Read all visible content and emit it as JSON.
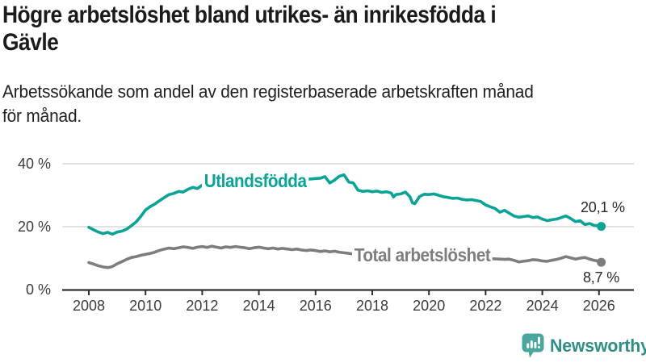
{
  "header": {
    "title": "Högre arbetslöshet bland utrikes- än inrikesfödda i\nGävle",
    "subtitle": "Arbetssökande som andel av den registerbaserade arbetskraften månad\nför månad."
  },
  "chart_data": {
    "type": "line",
    "unit": "%",
    "title": "Högre arbetslöshet bland utrikes- än inrikesfödda i Gävle",
    "subtitle": "Arbetssökande som andel av den registerbaserade arbetskraften månad för månad.",
    "xlabel": "",
    "ylabel": "",
    "ylim": [
      0,
      40
    ],
    "xlim": [
      2008,
      2026.3
    ],
    "grid": "horizontal",
    "grid_color": "#d9d9d9",
    "axis_color": "#2e2e2e",
    "tick_label_color": "#3c3c3c",
    "yticks": [
      {
        "value": 0,
        "label": "0 %"
      },
      {
        "value": 20,
        "label": "20 %"
      },
      {
        "value": 40,
        "label": "40 %"
      }
    ],
    "xticks": [
      {
        "value": 2008,
        "label": "2008"
      },
      {
        "value": 2010,
        "label": "2010"
      },
      {
        "value": 2012,
        "label": "2012"
      },
      {
        "value": 2014,
        "label": "2014"
      },
      {
        "value": 2016,
        "label": "2016"
      },
      {
        "value": 2018,
        "label": "2018"
      },
      {
        "value": 2020,
        "label": "2020"
      },
      {
        "value": 2022,
        "label": "2022"
      },
      {
        "value": 2024,
        "label": "2024"
      },
      {
        "value": 2026,
        "label": "2026"
      }
    ],
    "series": [
      {
        "name": "Utlandsfödda",
        "color": "#0aa396",
        "end_value": 20.1,
        "end_label": "20,1 %",
        "points": [
          [
            2008.0,
            19.8
          ],
          [
            2008.17,
            19.0
          ],
          [
            2008.33,
            18.3
          ],
          [
            2008.5,
            17.8
          ],
          [
            2008.67,
            18.2
          ],
          [
            2008.83,
            17.6
          ],
          [
            2009.0,
            18.3
          ],
          [
            2009.17,
            18.6
          ],
          [
            2009.33,
            19.2
          ],
          [
            2009.5,
            20.3
          ],
          [
            2009.67,
            21.5
          ],
          [
            2009.83,
            23.2
          ],
          [
            2010.0,
            25.3
          ],
          [
            2010.17,
            26.4
          ],
          [
            2010.33,
            27.2
          ],
          [
            2010.5,
            28.3
          ],
          [
            2010.67,
            29.3
          ],
          [
            2010.83,
            30.2
          ],
          [
            2011.0,
            30.6
          ],
          [
            2011.17,
            31.2
          ],
          [
            2011.33,
            31.0
          ],
          [
            2011.5,
            31.9
          ],
          [
            2011.67,
            32.5
          ],
          [
            2011.83,
            32.1
          ],
          [
            2012.0,
            33.2
          ],
          [
            2012.17,
            32.7
          ],
          [
            2012.33,
            33.1
          ],
          [
            2012.5,
            33.4
          ],
          [
            2012.67,
            33.0
          ],
          [
            2012.83,
            33.5
          ],
          [
            2013.0,
            33.3
          ],
          [
            2013.25,
            33.8
          ],
          [
            2013.5,
            34.1
          ],
          [
            2013.75,
            33.8
          ],
          [
            2014.0,
            34.3
          ],
          [
            2014.25,
            34.1
          ],
          [
            2014.5,
            34.6
          ],
          [
            2014.75,
            34.4
          ],
          [
            2015.0,
            34.7
          ],
          [
            2015.25,
            34.5
          ],
          [
            2015.5,
            34.9
          ],
          [
            2015.75,
            35.1
          ],
          [
            2016.0,
            35.3
          ],
          [
            2016.17,
            35.4
          ],
          [
            2016.33,
            35.9
          ],
          [
            2016.5,
            33.9
          ],
          [
            2016.67,
            34.8
          ],
          [
            2016.83,
            36.0
          ],
          [
            2017.0,
            36.5
          ],
          [
            2017.08,
            35.5
          ],
          [
            2017.17,
            34.2
          ],
          [
            2017.33,
            33.9
          ],
          [
            2017.5,
            31.6
          ],
          [
            2017.67,
            31.2
          ],
          [
            2017.83,
            31.4
          ],
          [
            2018.0,
            31.1
          ],
          [
            2018.17,
            31.3
          ],
          [
            2018.33,
            30.9
          ],
          [
            2018.5,
            31.1
          ],
          [
            2018.67,
            30.7
          ],
          [
            2018.75,
            29.4
          ],
          [
            2018.83,
            30.2
          ],
          [
            2019.0,
            30.4
          ],
          [
            2019.17,
            31.0
          ],
          [
            2019.33,
            29.5
          ],
          [
            2019.42,
            27.6
          ],
          [
            2019.5,
            27.3
          ],
          [
            2019.67,
            29.6
          ],
          [
            2019.83,
            30.3
          ],
          [
            2020.0,
            30.2
          ],
          [
            2020.17,
            30.4
          ],
          [
            2020.33,
            30.0
          ],
          [
            2020.5,
            29.5
          ],
          [
            2020.67,
            29.3
          ],
          [
            2020.83,
            29.0
          ],
          [
            2021.0,
            29.1
          ],
          [
            2021.17,
            28.7
          ],
          [
            2021.33,
            28.5
          ],
          [
            2021.5,
            28.6
          ],
          [
            2021.67,
            28.3
          ],
          [
            2021.83,
            28.0
          ],
          [
            2022.0,
            26.9
          ],
          [
            2022.17,
            26.3
          ],
          [
            2022.33,
            25.8
          ],
          [
            2022.5,
            24.6
          ],
          [
            2022.67,
            25.2
          ],
          [
            2022.83,
            24.3
          ],
          [
            2023.0,
            23.4
          ],
          [
            2023.17,
            23.0
          ],
          [
            2023.33,
            23.2
          ],
          [
            2023.5,
            23.4
          ],
          [
            2023.67,
            22.9
          ],
          [
            2023.83,
            23.1
          ],
          [
            2024.0,
            22.4
          ],
          [
            2024.17,
            21.9
          ],
          [
            2024.33,
            22.2
          ],
          [
            2024.5,
            22.4
          ],
          [
            2024.67,
            22.9
          ],
          [
            2024.83,
            23.4
          ],
          [
            2025.0,
            22.6
          ],
          [
            2025.17,
            21.6
          ],
          [
            2025.33,
            21.9
          ],
          [
            2025.5,
            20.7
          ],
          [
            2025.67,
            21.0
          ],
          [
            2025.83,
            20.4
          ],
          [
            2026.0,
            20.3
          ],
          [
            2026.08,
            20.1
          ]
        ]
      },
      {
        "name": "Total arbetslöshet",
        "color": "#7d7d7d",
        "end_value": 8.7,
        "end_label": "8,7 %",
        "points": [
          [
            2008.0,
            8.6
          ],
          [
            2008.17,
            8.1
          ],
          [
            2008.33,
            7.6
          ],
          [
            2008.5,
            7.2
          ],
          [
            2008.67,
            7.0
          ],
          [
            2008.83,
            7.3
          ],
          [
            2009.0,
            8.2
          ],
          [
            2009.17,
            8.9
          ],
          [
            2009.33,
            9.6
          ],
          [
            2009.5,
            10.2
          ],
          [
            2009.67,
            10.5
          ],
          [
            2009.83,
            10.9
          ],
          [
            2010.0,
            11.2
          ],
          [
            2010.17,
            11.5
          ],
          [
            2010.33,
            11.9
          ],
          [
            2010.5,
            12.5
          ],
          [
            2010.67,
            12.9
          ],
          [
            2010.83,
            13.2
          ],
          [
            2011.0,
            13.0
          ],
          [
            2011.17,
            13.3
          ],
          [
            2011.33,
            13.6
          ],
          [
            2011.5,
            13.4
          ],
          [
            2011.67,
            13.1
          ],
          [
            2011.83,
            13.5
          ],
          [
            2012.0,
            13.7
          ],
          [
            2012.17,
            13.4
          ],
          [
            2012.33,
            13.8
          ],
          [
            2012.5,
            13.5
          ],
          [
            2012.67,
            13.2
          ],
          [
            2012.83,
            13.6
          ],
          [
            2013.0,
            13.4
          ],
          [
            2013.17,
            13.7
          ],
          [
            2013.33,
            13.5
          ],
          [
            2013.5,
            13.3
          ],
          [
            2013.67,
            13.0
          ],
          [
            2013.83,
            13.3
          ],
          [
            2014.0,
            13.5
          ],
          [
            2014.17,
            13.2
          ],
          [
            2014.33,
            13.0
          ],
          [
            2014.5,
            13.2
          ],
          [
            2014.67,
            12.9
          ],
          [
            2014.83,
            13.1
          ],
          [
            2015.0,
            12.9
          ],
          [
            2015.17,
            12.7
          ],
          [
            2015.33,
            12.9
          ],
          [
            2015.5,
            12.6
          ],
          [
            2015.67,
            12.4
          ],
          [
            2015.83,
            12.6
          ],
          [
            2016.0,
            12.4
          ],
          [
            2016.17,
            12.1
          ],
          [
            2016.33,
            12.3
          ],
          [
            2016.5,
            12.0
          ],
          [
            2016.67,
            12.2
          ],
          [
            2016.83,
            11.9
          ],
          [
            2017.0,
            11.7
          ],
          [
            2017.17,
            11.5
          ],
          [
            2017.33,
            11.3
          ],
          [
            2017.5,
            11.2
          ],
          [
            2017.75,
            11.0
          ],
          [
            2018.0,
            10.9
          ],
          [
            2018.25,
            10.8
          ],
          [
            2018.5,
            10.6
          ],
          [
            2018.75,
            10.5
          ],
          [
            2019.0,
            10.3
          ],
          [
            2019.25,
            10.1
          ],
          [
            2019.5,
            9.9
          ],
          [
            2019.75,
            10.0
          ],
          [
            2020.0,
            10.1
          ],
          [
            2020.25,
            11.0
          ],
          [
            2020.5,
            11.2
          ],
          [
            2020.75,
            10.9
          ],
          [
            2021.0,
            10.6
          ],
          [
            2021.25,
            10.3
          ],
          [
            2021.5,
            10.1
          ],
          [
            2021.75,
            10.0
          ],
          [
            2022.0,
            9.9
          ],
          [
            2022.25,
            9.8
          ],
          [
            2022.5,
            9.7
          ],
          [
            2022.67,
            9.6
          ],
          [
            2022.83,
            9.7
          ],
          [
            2023.0,
            9.3
          ],
          [
            2023.17,
            8.8
          ],
          [
            2023.33,
            9.0
          ],
          [
            2023.5,
            9.2
          ],
          [
            2023.67,
            9.5
          ],
          [
            2023.83,
            9.4
          ],
          [
            2024.0,
            9.1
          ],
          [
            2024.17,
            9.0
          ],
          [
            2024.33,
            9.3
          ],
          [
            2024.5,
            9.6
          ],
          [
            2024.67,
            10.0
          ],
          [
            2024.83,
            10.5
          ],
          [
            2025.0,
            10.1
          ],
          [
            2025.17,
            9.7
          ],
          [
            2025.33,
            10.0
          ],
          [
            2025.5,
            10.2
          ],
          [
            2025.67,
            9.7
          ],
          [
            2025.83,
            9.3
          ],
          [
            2026.0,
            9.0
          ],
          [
            2026.08,
            8.7
          ]
        ]
      }
    ],
    "legend_position": "inline-labels"
  },
  "footer": {
    "brand": "Newsworthy",
    "brand_color": "#2f8e86",
    "icon_color": "#4ba79e"
  }
}
